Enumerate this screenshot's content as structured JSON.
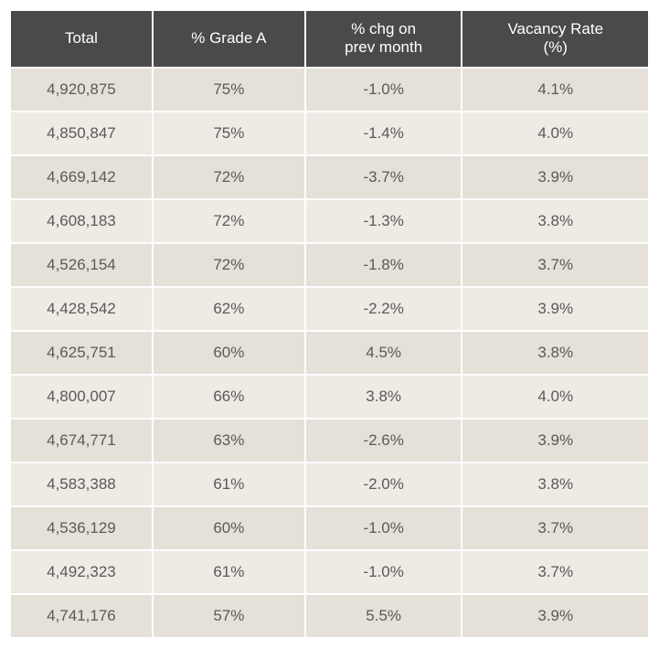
{
  "table": {
    "type": "table",
    "background_color": "#ffffff",
    "header_bg_color": "#4a4a4a",
    "header_text_color": "#ffffff",
    "row_bg_odd": "#e5e0d8",
    "row_bg_even": "#eeeae4",
    "cell_text_color": "#5a5a5a",
    "header_fontsize": 17,
    "cell_fontsize": 17,
    "columns": [
      {
        "label": "Total",
        "width": "25%"
      },
      {
        "label": "% Grade A",
        "width": "25%"
      },
      {
        "label": "% chg on prev month",
        "width": "25%"
      },
      {
        "label": "Vacancy Rate (%)",
        "width": "25%"
      }
    ],
    "rows": [
      {
        "total": "4,920,875",
        "grade_a": "75%",
        "chg": "-1.0%",
        "vacancy": "4.1%"
      },
      {
        "total": "4,850,847",
        "grade_a": "75%",
        "chg": "-1.4%",
        "vacancy": "4.0%"
      },
      {
        "total": "4,669,142",
        "grade_a": "72%",
        "chg": "-3.7%",
        "vacancy": "3.9%"
      },
      {
        "total": "4,608,183",
        "grade_a": "72%",
        "chg": "-1.3%",
        "vacancy": "3.8%"
      },
      {
        "total": "4,526,154",
        "grade_a": "72%",
        "chg": "-1.8%",
        "vacancy": "3.7%"
      },
      {
        "total": "4,428,542",
        "grade_a": "62%",
        "chg": "-2.2%",
        "vacancy": "3.9%"
      },
      {
        "total": "4,625,751",
        "grade_a": "60%",
        "chg": "4.5%",
        "vacancy": "3.8%"
      },
      {
        "total": "4,800,007",
        "grade_a": "66%",
        "chg": "3.8%",
        "vacancy": "4.0%"
      },
      {
        "total": "4,674,771",
        "grade_a": "63%",
        "chg": "-2.6%",
        "vacancy": "3.9%"
      },
      {
        "total": "4,583,388",
        "grade_a": "61%",
        "chg": "-2.0%",
        "vacancy": "3.8%"
      },
      {
        "total": "4,536,129",
        "grade_a": "60%",
        "chg": "-1.0%",
        "vacancy": "3.7%"
      },
      {
        "total": "4,492,323",
        "grade_a": "61%",
        "chg": "-1.0%",
        "vacancy": "3.7%"
      },
      {
        "total": "4,741,176",
        "grade_a": "57%",
        "chg": "5.5%",
        "vacancy": "3.9%"
      }
    ]
  }
}
